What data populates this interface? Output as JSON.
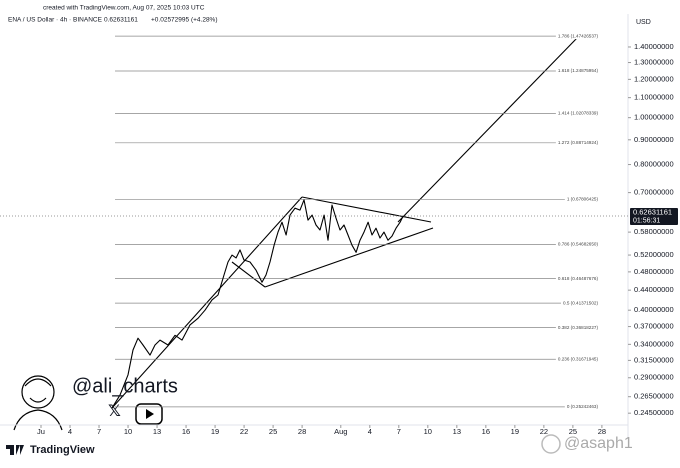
{
  "chart_data": {
    "type": "line",
    "created": "created with TradingView.com, Aug 07, 2025 10:03 UTC",
    "title": "ENA / US Dollar · 4h · BINANCE",
    "last_price": 0.62631161,
    "change_label": "+0.02572995 (+4.28%)",
    "currency": "USD",
    "countdown": "01:56:31",
    "color": "#000000",
    "log_scale": true,
    "grid": false,
    "xlim": [
      -3.24,
      61.7
    ],
    "ylim": [
      0.2316,
      1.607
    ],
    "xticks": [
      {
        "value": 1,
        "label": "Ju"
      },
      4,
      7,
      10,
      13,
      16,
      19,
      22,
      25,
      28,
      {
        "value": 32,
        "label": "Aug"
      },
      {
        "value": 35,
        "label": "4"
      },
      {
        "value": 38,
        "label": "7"
      },
      {
        "value": 41,
        "label": "10"
      },
      {
        "value": 44,
        "label": "13"
      },
      {
        "value": 47,
        "label": "16"
      },
      {
        "value": 50,
        "label": "19"
      },
      {
        "value": 53,
        "label": "22"
      },
      {
        "value": 56,
        "label": "25"
      },
      {
        "value": 59,
        "label": "28"
      }
    ],
    "yticks": [
      {
        "value": 1.4,
        "label": "1.40000000"
      },
      {
        "value": 1.3,
        "label": "1.30000000"
      },
      {
        "value": 1.2,
        "label": "1.20000000"
      },
      {
        "value": 1.1,
        "label": "1.10000000"
      },
      {
        "value": 1.0,
        "label": "1.00000000"
      },
      {
        "value": 0.9,
        "label": "0.90000000"
      },
      {
        "value": 0.8,
        "label": "0.80000000"
      },
      {
        "value": 0.7,
        "label": "0.70000000"
      },
      {
        "value": 0.58,
        "label": "0.58000000"
      },
      {
        "value": 0.52,
        "label": "0.52000000"
      },
      {
        "value": 0.48,
        "label": "0.48000000"
      },
      {
        "value": 0.44,
        "label": "0.44000000"
      },
      {
        "value": 0.4,
        "label": "0.40000000"
      },
      {
        "value": 0.37,
        "label": "0.37000000"
      },
      {
        "value": 0.34,
        "label": "0.34000000"
      },
      {
        "value": 0.315,
        "label": "0.31500000"
      },
      {
        "value": 0.29,
        "label": "0.29000000"
      },
      {
        "value": 0.265,
        "label": "0.26500000"
      },
      {
        "value": 0.245,
        "label": "0.24500000"
      }
    ],
    "fib_levels": [
      {
        "label": "1.786 (1.47426537)",
        "value": 1.47426537
      },
      {
        "label": "1.618 (1.24875954)",
        "value": 1.24875954
      },
      {
        "label": "1.414 (1.02078339)",
        "value": 1.02078339
      },
      {
        "label": "1.272 (0.88714924)",
        "value": 0.88714924
      },
      {
        "label": "1 (0.67806425)",
        "value": 0.67806425
      },
      {
        "label": "0.786 (0.54682650)",
        "value": 0.5468265
      },
      {
        "label": "0.618 (0.46487676)",
        "value": 0.46487676
      },
      {
        "label": "0.5 (0.41371502)",
        "value": 0.41371502
      },
      {
        "label": "0.382 (0.36818227)",
        "value": 0.36818227
      },
      {
        "label": "0.236 (0.31671945)",
        "value": 0.31671945
      },
      {
        "label": "0 (0.25242463)",
        "value": 0.25242463
      }
    ],
    "x": [
      8.34,
      9.17,
      10.0,
      10.51,
      11.03,
      11.55,
      12.27,
      12.79,
      13.31,
      14.13,
      14.86,
      15.58,
      16.41,
      17.24,
      17.96,
      18.68,
      19.3,
      19.92,
      20.34,
      20.75,
      21.17,
      21.58,
      21.99,
      22.61,
      23.23,
      23.85,
      24.27,
      24.68,
      25.1,
      25.51,
      25.92,
      26.34,
      26.75,
      27.27,
      27.78,
      28.2,
      28.61,
      29.03,
      29.44,
      29.85,
      30.27,
      30.68,
      31.09,
      31.51,
      31.92,
      32.33,
      32.75,
      33.16,
      33.58,
      33.99,
      34.4,
      34.82,
      35.23,
      35.64,
      36.06,
      36.47,
      36.88,
      37.3,
      37.71,
      38.13,
      38.44
    ],
    "values": [
      0.251,
      0.267,
      0.294,
      0.331,
      0.35,
      0.339,
      0.323,
      0.339,
      0.347,
      0.339,
      0.355,
      0.347,
      0.373,
      0.385,
      0.4,
      0.42,
      0.43,
      0.473,
      0.503,
      0.52,
      0.513,
      0.533,
      0.508,
      0.503,
      0.484,
      0.457,
      0.473,
      0.503,
      0.545,
      0.58,
      0.608,
      0.572,
      0.629,
      0.65,
      0.644,
      0.676,
      0.614,
      0.629,
      0.6,
      0.586,
      0.629,
      0.558,
      0.66,
      0.62,
      0.586,
      0.6,
      0.572,
      0.545,
      0.527,
      0.558,
      0.58,
      0.608,
      0.572,
      0.591,
      0.564,
      0.58,
      0.558,
      0.569,
      0.591,
      0.608,
      0.626
    ],
    "annotations": [
      "@ali_charts",
      "@asaph1"
    ],
    "brand": "TradingView"
  }
}
